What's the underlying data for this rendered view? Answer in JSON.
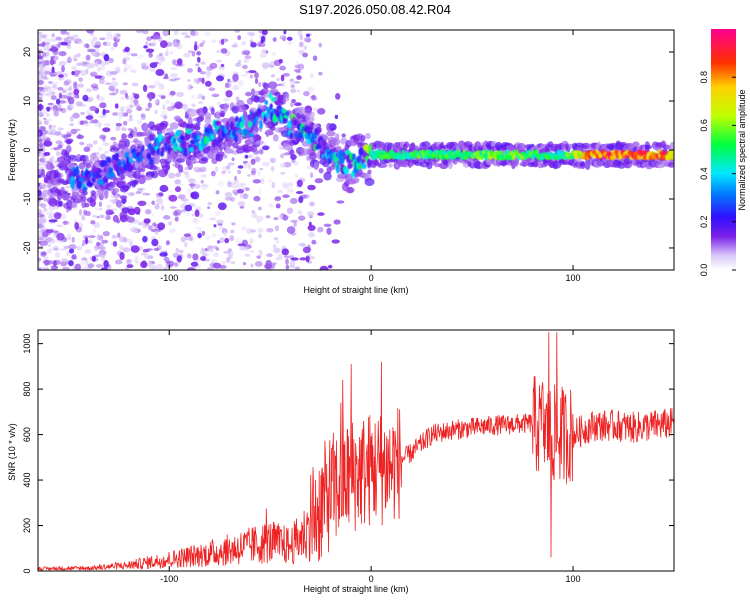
{
  "title": "S197.2026.050.08.42.R04",
  "chart_data": [
    {
      "type": "heatmap",
      "name": "spectrogram",
      "xlabel": "Height of straight line (km)",
      "ylabel": "Frequency (Hz)",
      "xlim": [
        -165,
        150
      ],
      "ylim": [
        -24.5,
        24.5
      ],
      "xticks": [
        -100,
        0,
        100
      ],
      "yticks": [
        -20,
        -10,
        0,
        10,
        20
      ],
      "colorbar": {
        "label": "Normalized spectral amplitude",
        "range": [
          0,
          1
        ],
        "ticks": [
          0.0,
          0.2,
          0.4,
          0.6,
          0.8
        ],
        "colormap": [
          "#ffffff",
          "#d8c8f8",
          "#7a20e8",
          "#3010ff",
          "#0080ff",
          "#00e8ff",
          "#00ff40",
          "#c0ff00",
          "#ffd000",
          "#ff3000",
          "#ff0090"
        ]
      },
      "ridge": {
        "x": [
          -140,
          -120,
          -100,
          -80,
          -60,
          -50,
          -40,
          -30,
          -20,
          -10,
          0,
          20,
          40,
          60,
          80,
          95,
          110,
          130,
          150
        ],
        "y": [
          -6,
          -2,
          1,
          3,
          5,
          9,
          5,
          3,
          -1,
          -3,
          -1,
          -1,
          -1,
          -1,
          -1,
          -1,
          -1,
          -1,
          -1
        ],
        "amplitude": [
          0.25,
          0.25,
          0.3,
          0.35,
          0.3,
          0.3,
          0.4,
          0.4,
          0.3,
          0.35,
          0.5,
          0.55,
          0.55,
          0.6,
          0.55,
          0.5,
          0.9,
          0.9,
          0.85
        ]
      }
    },
    {
      "type": "line",
      "name": "snr",
      "xlabel": "Height of straight line (km)",
      "ylabel": "SNR (10 * v/v)",
      "xlim": [
        -165,
        150
      ],
      "ylim": [
        0,
        1060
      ],
      "xticks": [
        -100,
        0,
        100
      ],
      "yticks": [
        0,
        200,
        400,
        600,
        800,
        1000
      ],
      "color": "#ee2222",
      "envelope": {
        "x": [
          -165,
          -140,
          -120,
          -100,
          -80,
          -60,
          -50,
          -40,
          -30,
          -20,
          -10,
          0,
          10,
          20,
          30,
          40,
          60,
          80,
          90,
          100,
          110,
          120,
          130,
          150
        ],
        "y": [
          12,
          15,
          30,
          60,
          90,
          130,
          150,
          130,
          220,
          350,
          420,
          450,
          460,
          520,
          600,
          620,
          640,
          650,
          600,
          600,
          640,
          640,
          630,
          650
        ]
      },
      "peaks": [
        {
          "x": -52,
          "y": 275
        },
        {
          "x": -15,
          "y": 740
        },
        {
          "x": -14,
          "y": 840
        },
        {
          "x": -10,
          "y": 910
        },
        {
          "x": 5,
          "y": 920
        },
        {
          "x": 85,
          "y": 830
        },
        {
          "x": 88,
          "y": 1050
        },
        {
          "x": 92,
          "y": 1050
        },
        {
          "x": 89,
          "y": 60
        }
      ]
    }
  ]
}
